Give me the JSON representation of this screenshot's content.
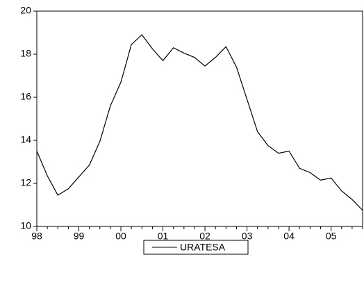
{
  "chart_data": {
    "type": "line",
    "categories": [
      "98",
      null,
      null,
      null,
      "99",
      null,
      null,
      null,
      "00",
      null,
      null,
      null,
      "01",
      null,
      null,
      null,
      "02",
      null,
      null,
      null,
      "03",
      null,
      null,
      null,
      "04",
      null,
      null,
      null,
      "05",
      null,
      null,
      null
    ],
    "series": [
      {
        "name": "URATESA",
        "color": "#000000",
        "values": [
          13.5,
          12.35,
          11.45,
          11.75,
          12.3,
          12.85,
          13.95,
          15.6,
          16.7,
          18.45,
          18.9,
          18.25,
          17.7,
          18.3,
          18.05,
          17.85,
          17.45,
          17.85,
          18.35,
          17.4,
          15.9,
          14.4,
          13.75,
          13.4,
          13.5,
          12.7,
          12.5,
          12.15,
          12.25,
          11.65,
          11.25,
          10.75
        ]
      }
    ],
    "ylim": [
      10,
      20
    ],
    "yticks": [
      10,
      12,
      14,
      16,
      18,
      20
    ],
    "legend": "bottom"
  }
}
